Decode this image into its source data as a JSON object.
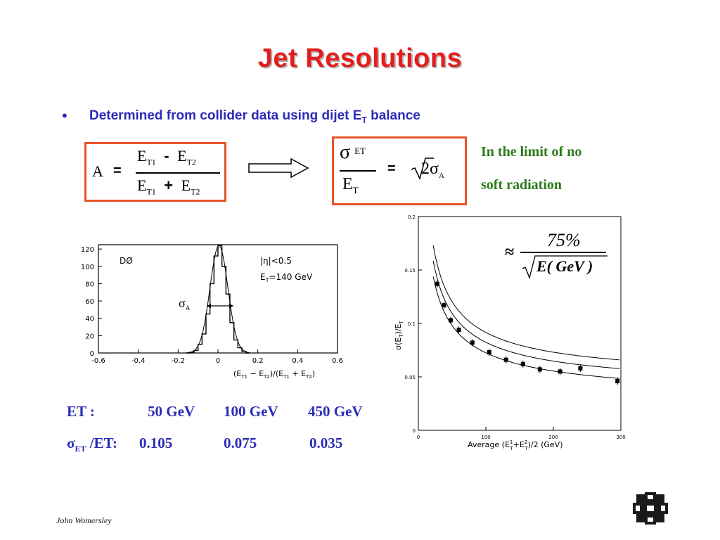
{
  "slide": {
    "title": "Jet Resolutions",
    "bullet": {
      "text_before": "Determined from collider data using dijet E",
      "sub": "T",
      "text_after": " balance"
    },
    "formula_a": {
      "lhs": "A",
      "eq": "=",
      "num_a": "E",
      "num_a_sub": "T1",
      "num_op": "-",
      "num_b": "E",
      "num_b_sub": "T2",
      "den_a": "E",
      "den_a_sub": "T1",
      "den_op": "+",
      "den_b": "E",
      "den_b_sub": "T2"
    },
    "formula_sigma": {
      "num": "σ",
      "num_sub": "ET",
      "den": "E",
      "den_sub": "T",
      "eq": "=",
      "root": "2",
      "rhs": "σ",
      "rhs_sub": "A"
    },
    "limit_note": {
      "line1": "In the limit of no",
      "line2": "soft radiation"
    },
    "approx": {
      "symbol": "≈",
      "num": "75%",
      "den": "E( GeV )"
    },
    "table": {
      "row1": [
        "ET :",
        "50 GeV",
        "100  GeV",
        "450 GeV"
      ],
      "row2_label_sym": "σ",
      "row2_label_sub": "ET",
      "row2_label_rest": " /ET:",
      "row2": [
        "0.105",
        "0.075",
        "0.035"
      ]
    },
    "footer": "John Womersley",
    "colors": {
      "title": "#e41e1e",
      "text": "#2b2bb8",
      "box": "#e8542a",
      "note": "#2c7a1a",
      "logo": "#1a1a1a"
    },
    "logo_icon": "fermilab-logo-icon"
  },
  "chart_data": [
    {
      "type": "histogram",
      "xlabel": "(E_T1 − E_T2)/(E_T1 + E_T2)",
      "ylim": [
        0,
        125
      ],
      "xlim": [
        -0.6,
        0.6
      ],
      "x_ticks": [
        "-0.6",
        "-0.4",
        "-0.2",
        "0",
        "0.2",
        "0.4",
        "0.6"
      ],
      "y_ticks": [
        "0",
        "20",
        "40",
        "60",
        "80",
        "100",
        "120"
      ],
      "annotations": {
        "experiment": "DØ",
        "cut1": "|η|<0.5",
        "cut2": "=140 GeV",
        "cut2_prefix": "E",
        "cut2_sub": "T",
        "sigma": "σ",
        "sigma_sub": "A"
      },
      "bins": [
        [
          -0.15,
          0
        ],
        [
          -0.13,
          1
        ],
        [
          -0.11,
          3
        ],
        [
          -0.09,
          10
        ],
        [
          -0.07,
          22
        ],
        [
          -0.05,
          45
        ],
        [
          -0.03,
          80
        ],
        [
          -0.01,
          112
        ],
        [
          0.01,
          124
        ],
        [
          0.03,
          100
        ],
        [
          0.05,
          68
        ],
        [
          0.07,
          35
        ],
        [
          0.09,
          15
        ],
        [
          0.11,
          6
        ],
        [
          0.13,
          2
        ],
        [
          0.15,
          0
        ]
      ]
    },
    {
      "type": "scatter",
      "xlabel": "Average (E_T^1+E_T^2)/2 (GeV)",
      "ylabel": "σ(E_T)/E_T",
      "xlim": [
        0,
        300
      ],
      "ylim": [
        0,
        0.2
      ],
      "x_ticks": [
        "0",
        "100",
        "200",
        "300"
      ],
      "y_ticks": [
        "0",
        "0.05",
        "0.1",
        "0.15",
        "0.2"
      ],
      "points": [
        [
          28,
          0.137
        ],
        [
          38,
          0.117
        ],
        [
          48,
          0.103
        ],
        [
          60,
          0.094
        ],
        [
          80,
          0.082
        ],
        [
          105,
          0.073
        ],
        [
          130,
          0.066
        ],
        [
          155,
          0.062
        ],
        [
          180,
          0.057
        ],
        [
          210,
          0.055
        ],
        [
          240,
          0.058
        ],
        [
          295,
          0.046
        ]
      ]
    }
  ]
}
